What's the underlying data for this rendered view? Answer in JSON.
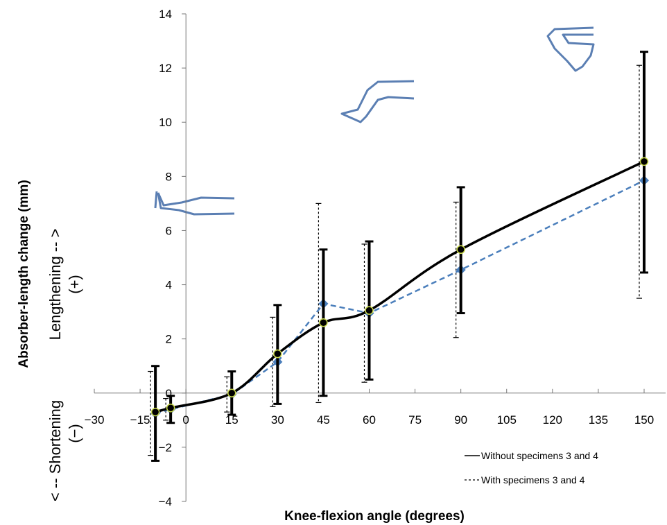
{
  "chart_data": {
    "type": "line",
    "xlabel": "Knee-flexion angle (degrees)",
    "ylabel": "Absorber-length change (mm)",
    "xlim": [
      -30,
      160
    ],
    "ylim": [
      -4,
      14
    ],
    "xticks": [
      -30,
      -15,
      0,
      15,
      30,
      45,
      60,
      75,
      90,
      105,
      120,
      135,
      150
    ],
    "yticks": [
      -4,
      -2,
      0,
      2,
      4,
      6,
      8,
      10,
      12,
      14
    ],
    "x_tick_labels": [
      "−30",
      "−15",
      "0",
      "15",
      "30",
      "45",
      "60",
      "75",
      "90",
      "105",
      "120",
      "135",
      "150"
    ],
    "y_tick_labels": [
      "−4",
      "−2",
      "0",
      "2",
      "4",
      "6",
      "8",
      "10",
      "12",
      "14"
    ],
    "grid": false,
    "legend_position": "bottom-right",
    "direction_labels": {
      "lengthening_line1": "Lengthening  -- >",
      "lengthening_line2": "(+)",
      "shortening_line1": "< --  Shortening",
      "shortening_line2": "(−)"
    },
    "series": [
      {
        "name": "Without specimens 3 and 4",
        "style": "solid",
        "color": "#000000",
        "marker_color": "#c8d84a",
        "points": [
          {
            "x": -10,
            "y": -0.7,
            "lo": -2.5,
            "hi": 1.0
          },
          {
            "x": -5,
            "y": -0.55,
            "lo": -1.1,
            "hi": -0.1
          },
          {
            "x": 15,
            "y": 0.0,
            "lo": -0.8,
            "hi": 0.8
          },
          {
            "x": 30,
            "y": 1.45,
            "lo": -0.4,
            "hi": 3.25
          },
          {
            "x": 45,
            "y": 2.6,
            "lo": -0.1,
            "hi": 5.3
          },
          {
            "x": 60,
            "y": 3.05,
            "lo": 0.5,
            "hi": 5.6
          },
          {
            "x": 90,
            "y": 5.3,
            "lo": 2.95,
            "hi": 7.6
          },
          {
            "x": 150,
            "y": 8.55,
            "lo": 4.45,
            "hi": 12.6
          }
        ]
      },
      {
        "name": "With specimens 3 and 4",
        "style": "dashed",
        "color": "#4a7ebb",
        "marker_color": "#4a7ebb",
        "points": [
          {
            "x": -10,
            "y": -0.75,
            "lo": -2.3,
            "hi": 0.8
          },
          {
            "x": -5,
            "y": -0.6,
            "lo": -1.0,
            "hi": -0.2
          },
          {
            "x": 15,
            "y": -0.05,
            "lo": -0.7,
            "hi": 0.6
          },
          {
            "x": 30,
            "y": 1.15,
            "lo": -0.5,
            "hi": 2.8
          },
          {
            "x": 45,
            "y": 3.3,
            "lo": -0.35,
            "hi": 7.0
          },
          {
            "x": 60,
            "y": 2.95,
            "lo": 0.4,
            "hi": 5.5
          },
          {
            "x": 90,
            "y": 4.55,
            "lo": 2.05,
            "hi": 7.05
          },
          {
            "x": 150,
            "y": 7.85,
            "lo": 3.5,
            "hi": 12.1
          }
        ]
      }
    ]
  },
  "icons": {
    "leg_straight": "leg-straight-icon",
    "leg_bent_90": "leg-bent-icon",
    "leg_fully_flexed": "leg-flexed-icon",
    "color": "#5b7fb3"
  }
}
